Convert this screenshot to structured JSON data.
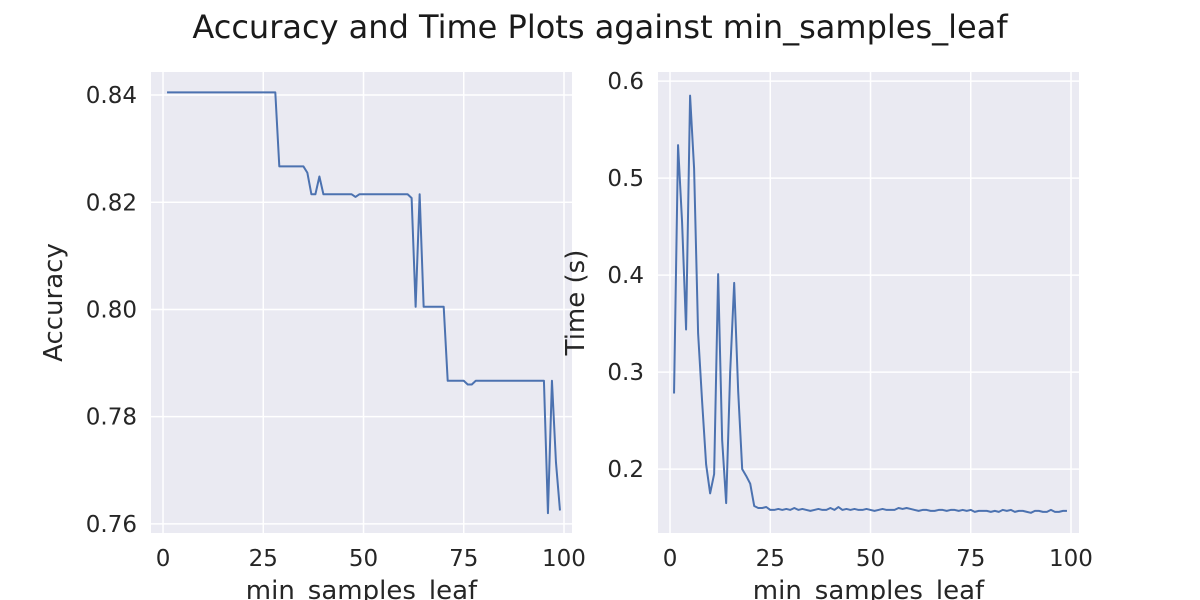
{
  "figure": {
    "title": "Accuracy and Time Plots against min_samples_leaf"
  },
  "chart_data": [
    {
      "type": "line",
      "xlabel": "min_samples_leaf",
      "ylabel": "Accuracy",
      "xlim": [
        -3,
        102
      ],
      "ylim": [
        0.7583,
        0.8443
      ],
      "xticks": [
        0,
        25,
        50,
        75,
        100
      ],
      "yticks": [
        0.76,
        0.78,
        0.8,
        0.82,
        0.84
      ],
      "ytick_labels": [
        "0.76",
        "0.78",
        "0.80",
        "0.82",
        "0.84"
      ],
      "grid": true,
      "color": "#4c72b0",
      "x": [
        1,
        2,
        3,
        4,
        5,
        6,
        7,
        8,
        9,
        10,
        11,
        12,
        13,
        14,
        15,
        16,
        17,
        18,
        19,
        20,
        21,
        22,
        23,
        24,
        25,
        26,
        27,
        28,
        29,
        30,
        31,
        32,
        33,
        34,
        35,
        36,
        37,
        38,
        39,
        40,
        41,
        42,
        43,
        44,
        45,
        46,
        47,
        48,
        49,
        50,
        51,
        52,
        53,
        54,
        55,
        56,
        57,
        58,
        59,
        60,
        61,
        62,
        63,
        64,
        65,
        66,
        67,
        68,
        69,
        70,
        71,
        72,
        73,
        74,
        75,
        76,
        77,
        78,
        79,
        80,
        81,
        82,
        83,
        84,
        85,
        86,
        87,
        88,
        89,
        90,
        91,
        92,
        93,
        94,
        95,
        96,
        97,
        98,
        99
      ],
      "y": [
        0.8405,
        0.8405,
        0.8405,
        0.8405,
        0.8405,
        0.8405,
        0.8405,
        0.8405,
        0.8405,
        0.8405,
        0.8405,
        0.8405,
        0.8405,
        0.8405,
        0.8405,
        0.8405,
        0.8405,
        0.8405,
        0.8405,
        0.8405,
        0.8405,
        0.8405,
        0.8405,
        0.8405,
        0.8405,
        0.8405,
        0.8405,
        0.8405,
        0.8267,
        0.8267,
        0.8267,
        0.8267,
        0.8267,
        0.8267,
        0.8267,
        0.8255,
        0.8215,
        0.8215,
        0.8248,
        0.8215,
        0.8215,
        0.8215,
        0.8215,
        0.8215,
        0.8215,
        0.8215,
        0.8215,
        0.821,
        0.8215,
        0.8215,
        0.8215,
        0.8215,
        0.8215,
        0.8215,
        0.8215,
        0.8215,
        0.8215,
        0.8215,
        0.8215,
        0.8215,
        0.8215,
        0.8208,
        0.8005,
        0.8215,
        0.8005,
        0.8005,
        0.8005,
        0.8005,
        0.8005,
        0.8005,
        0.7867,
        0.7867,
        0.7867,
        0.7867,
        0.7867,
        0.786,
        0.786,
        0.7867,
        0.7867,
        0.7867,
        0.7867,
        0.7867,
        0.7867,
        0.7867,
        0.7867,
        0.7867,
        0.7867,
        0.7867,
        0.7867,
        0.7867,
        0.7867,
        0.7867,
        0.7867,
        0.7867,
        0.7867,
        0.762,
        0.7867,
        0.7715,
        0.7625
      ]
    },
    {
      "type": "line",
      "xlabel": "min_samples_leaf",
      "ylabel": "Time (s)",
      "xlim": [
        -3,
        102
      ],
      "ylim": [
        0.1342,
        0.6094
      ],
      "xticks": [
        0,
        25,
        50,
        75,
        100
      ],
      "yticks": [
        0.2,
        0.3,
        0.4,
        0.5,
        0.6
      ],
      "ytick_labels": [
        "0.2",
        "0.3",
        "0.4",
        "0.5",
        "0.6"
      ],
      "grid": true,
      "color": "#4c72b0",
      "x": [
        1,
        2,
        3,
        4,
        5,
        6,
        7,
        8,
        9,
        10,
        11,
        12,
        13,
        14,
        15,
        16,
        17,
        18,
        19,
        20,
        21,
        22,
        23,
        24,
        25,
        26,
        27,
        28,
        29,
        30,
        31,
        32,
        33,
        34,
        35,
        36,
        37,
        38,
        39,
        40,
        41,
        42,
        43,
        44,
        45,
        46,
        47,
        48,
        49,
        50,
        51,
        52,
        53,
        54,
        55,
        56,
        57,
        58,
        59,
        60,
        61,
        62,
        63,
        64,
        65,
        66,
        67,
        68,
        69,
        70,
        71,
        72,
        73,
        74,
        75,
        76,
        77,
        78,
        79,
        80,
        81,
        82,
        83,
        84,
        85,
        86,
        87,
        88,
        89,
        90,
        91,
        92,
        93,
        94,
        95,
        96,
        97,
        98,
        99
      ],
      "y": [
        0.278,
        0.534,
        0.455,
        0.344,
        0.585,
        0.51,
        0.34,
        0.27,
        0.205,
        0.175,
        0.195,
        0.401,
        0.23,
        0.165,
        0.3,
        0.392,
        0.28,
        0.2,
        0.193,
        0.185,
        0.162,
        0.16,
        0.16,
        0.161,
        0.158,
        0.158,
        0.159,
        0.158,
        0.159,
        0.158,
        0.16,
        0.158,
        0.159,
        0.158,
        0.157,
        0.158,
        0.159,
        0.158,
        0.158,
        0.16,
        0.158,
        0.161,
        0.158,
        0.159,
        0.158,
        0.159,
        0.158,
        0.158,
        0.159,
        0.158,
        0.157,
        0.158,
        0.159,
        0.158,
        0.158,
        0.158,
        0.16,
        0.159,
        0.16,
        0.159,
        0.158,
        0.157,
        0.158,
        0.158,
        0.157,
        0.157,
        0.158,
        0.158,
        0.157,
        0.158,
        0.158,
        0.157,
        0.158,
        0.157,
        0.158,
        0.156,
        0.157,
        0.157,
        0.157,
        0.156,
        0.157,
        0.156,
        0.158,
        0.157,
        0.158,
        0.156,
        0.157,
        0.157,
        0.156,
        0.155,
        0.157,
        0.157,
        0.156,
        0.156,
        0.158,
        0.156,
        0.156,
        0.157,
        0.157
      ]
    }
  ]
}
